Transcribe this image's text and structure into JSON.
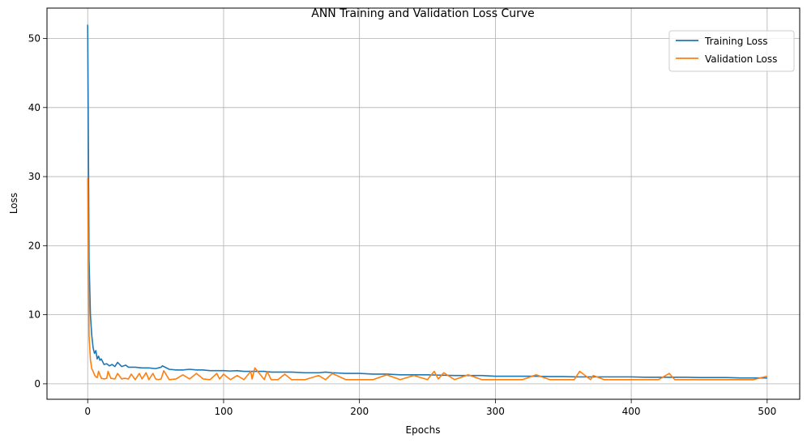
{
  "chart_data": {
    "type": "line",
    "title": "ANN Training and Validation Loss Curve",
    "xlabel": "Epochs",
    "ylabel": "Loss",
    "xlim": [
      -29.95,
      523.95
    ],
    "ylim": [
      -2.24,
      54.4
    ],
    "xticks": [
      0,
      100,
      200,
      300,
      400,
      500
    ],
    "yticks": [
      0,
      10,
      20,
      30,
      40,
      50
    ],
    "grid": true,
    "legend_position": "top-right",
    "series": [
      {
        "name": "Training Loss",
        "color": "#1f77b4",
        "x": [
          0,
          1,
          2,
          3,
          4,
          5,
          6,
          7,
          8,
          9,
          10,
          12,
          14,
          16,
          18,
          20,
          22,
          25,
          28,
          30,
          35,
          40,
          45,
          50,
          54,
          55,
          60,
          65,
          70,
          75,
          80,
          85,
          90,
          95,
          100,
          105,
          110,
          115,
          120,
          125,
          130,
          135,
          140,
          150,
          160,
          170,
          175,
          180,
          190,
          200,
          210,
          220,
          230,
          240,
          250,
          260,
          270,
          280,
          290,
          300,
          310,
          320,
          330,
          340,
          350,
          360,
          370,
          380,
          390,
          400,
          410,
          420,
          430,
          440,
          450,
          460,
          470,
          480,
          490,
          500
        ],
        "y": [
          52.0,
          18.0,
          10.0,
          7.0,
          5.2,
          4.4,
          4.8,
          3.6,
          4.0,
          3.4,
          3.6,
          2.8,
          2.9,
          2.6,
          2.8,
          2.5,
          3.1,
          2.5,
          2.7,
          2.4,
          2.4,
          2.3,
          2.3,
          2.2,
          2.4,
          2.6,
          2.1,
          2.0,
          2.0,
          2.1,
          2.0,
          2.0,
          1.9,
          1.9,
          1.9,
          1.85,
          1.9,
          1.8,
          1.8,
          1.8,
          1.8,
          1.7,
          1.7,
          1.7,
          1.6,
          1.6,
          1.7,
          1.6,
          1.5,
          1.5,
          1.4,
          1.4,
          1.3,
          1.3,
          1.3,
          1.25,
          1.2,
          1.2,
          1.2,
          1.1,
          1.1,
          1.1,
          1.1,
          1.05,
          1.05,
          1.0,
          1.0,
          1.0,
          1.0,
          1.0,
          0.95,
          0.95,
          0.95,
          0.95,
          0.9,
          0.9,
          0.9,
          0.85,
          0.85,
          0.85
        ]
      },
      {
        "name": "Validation Loss",
        "color": "#ff7f0e",
        "x": [
          0,
          1,
          2,
          3,
          4,
          5,
          6,
          7,
          8,
          10,
          12,
          14,
          15,
          17,
          20,
          22,
          25,
          27,
          30,
          32,
          35,
          38,
          40,
          43,
          45,
          48,
          50,
          52,
          54,
          56,
          60,
          65,
          70,
          75,
          80,
          85,
          90,
          95,
          97,
          100,
          105,
          110,
          115,
          120,
          121,
          123,
          130,
          132,
          135,
          140,
          145,
          150,
          160,
          170,
          175,
          180,
          190,
          200,
          210,
          220,
          230,
          240,
          250,
          255,
          258,
          262,
          270,
          280,
          290,
          300,
          310,
          320,
          330,
          340,
          350,
          358,
          362,
          370,
          372,
          380,
          390,
          400,
          410,
          420,
          428,
          432,
          440,
          450,
          460,
          470,
          480,
          490,
          500
        ],
        "y": [
          29.8,
          7.0,
          3.5,
          2.2,
          1.8,
          1.3,
          1.0,
          0.9,
          1.8,
          0.8,
          0.7,
          0.8,
          1.8,
          0.8,
          0.7,
          1.5,
          0.7,
          0.8,
          0.7,
          1.4,
          0.6,
          1.5,
          0.7,
          1.6,
          0.6,
          1.5,
          0.7,
          0.6,
          0.7,
          1.9,
          0.6,
          0.7,
          1.3,
          0.7,
          1.5,
          0.7,
          0.6,
          1.5,
          0.7,
          1.4,
          0.6,
          1.2,
          0.6,
          1.8,
          0.7,
          2.3,
          0.6,
          1.8,
          0.6,
          0.6,
          1.4,
          0.6,
          0.6,
          1.2,
          0.6,
          1.5,
          0.6,
          0.6,
          0.6,
          1.3,
          0.6,
          1.2,
          0.6,
          1.8,
          0.7,
          1.6,
          0.6,
          1.3,
          0.6,
          0.6,
          0.6,
          0.6,
          1.3,
          0.6,
          0.6,
          0.6,
          1.8,
          0.6,
          1.2,
          0.6,
          0.6,
          0.6,
          0.6,
          0.6,
          1.5,
          0.6,
          0.6,
          0.6,
          0.6,
          0.6,
          0.6,
          0.6,
          1.1
        ]
      }
    ]
  }
}
